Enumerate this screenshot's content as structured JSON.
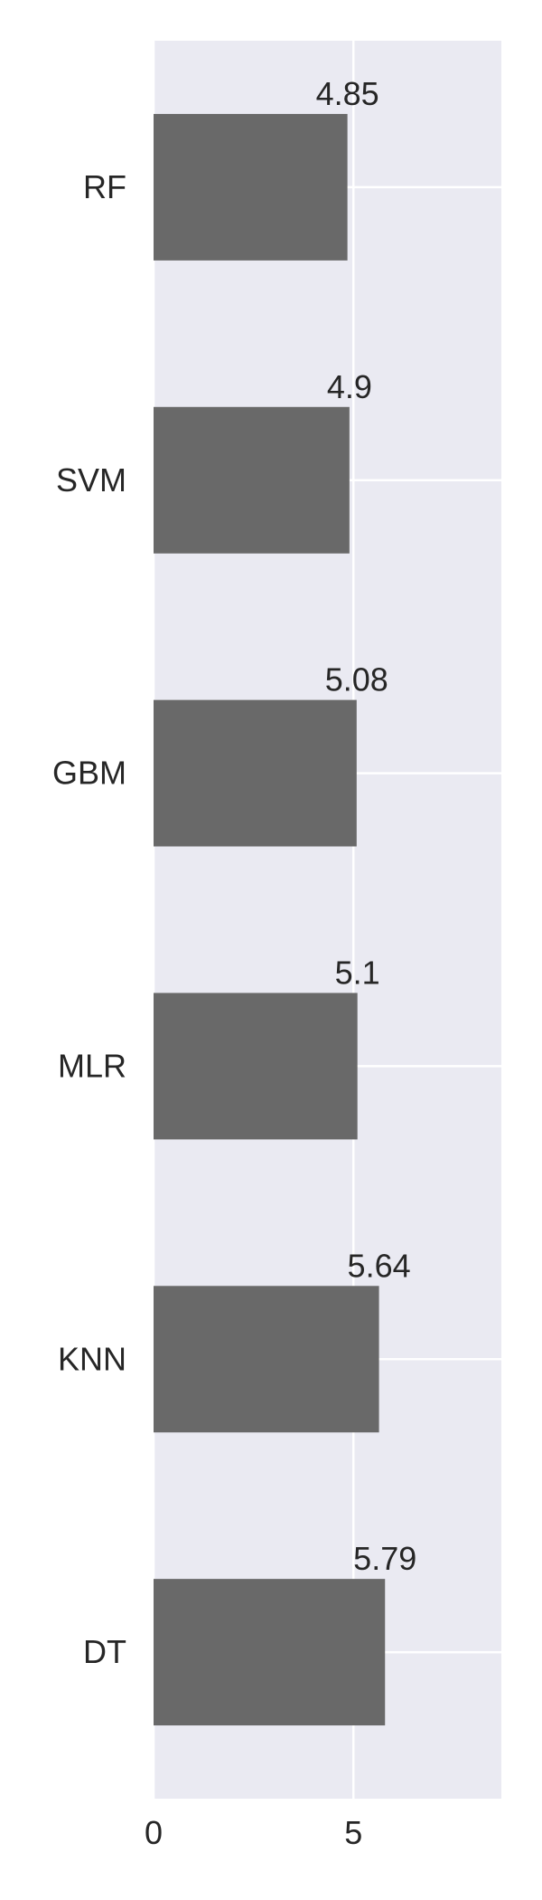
{
  "chart_data": {
    "type": "bar",
    "orientation": "horizontal",
    "categories": [
      "RF",
      "SVM",
      "GBM",
      "MLR",
      "KNN",
      "DT"
    ],
    "values": [
      4.85,
      4.9,
      5.08,
      5.1,
      5.64,
      5.79
    ],
    "value_labels": [
      "4.85",
      "4.9",
      "5.08",
      "5.1",
      "5.64",
      "5.79"
    ],
    "title": "",
    "xlabel": "",
    "ylabel": "",
    "xlim": [
      0,
      8.7
    ],
    "x_ticks": [
      0,
      5
    ],
    "x_tick_labels": [
      "0",
      "5"
    ],
    "grid": true,
    "legend": "none",
    "colors": {
      "bar": "#696969",
      "plot_background": "#eaeaf2",
      "grid": "#ffffff",
      "text": "#262626"
    }
  }
}
